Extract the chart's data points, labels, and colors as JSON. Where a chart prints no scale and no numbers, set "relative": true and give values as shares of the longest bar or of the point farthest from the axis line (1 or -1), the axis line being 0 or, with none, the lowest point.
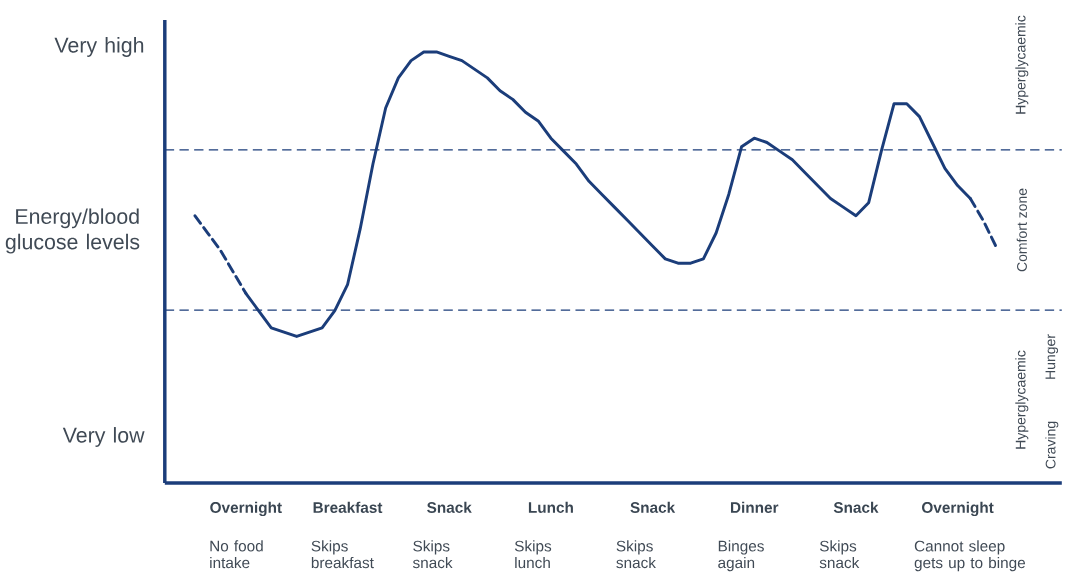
{
  "chart_data": {
    "type": "line",
    "relative": true,
    "ylabel": "Energy/blood glucose levels",
    "categories": [
      null,
      null,
      null,
      null,
      "Overnight",
      null,
      null,
      null,
      null,
      null,
      null,
      null,
      "Breakfast",
      null,
      null,
      null,
      null,
      null,
      null,
      null,
      "Snack",
      null,
      null,
      null,
      null,
      null,
      null,
      null,
      "Lunch",
      null,
      null,
      null,
      null,
      null,
      null,
      null,
      "Snack",
      null,
      null,
      null,
      null,
      null,
      null,
      null,
      "Dinner",
      null,
      null,
      null,
      null,
      null,
      null,
      null,
      "Snack",
      null,
      null,
      null,
      null,
      null,
      null,
      null,
      "Overnight",
      null,
      null,
      null
    ],
    "series": [
      {
        "color": "#1b3d7a",
        "line_style": "dashed",
        "values": [
          0.62,
          0.58,
          0.54,
          0.49,
          0.44,
          null,
          null,
          null,
          null,
          null,
          null,
          null,
          null,
          null,
          null,
          null,
          null,
          null,
          null,
          null,
          null,
          null,
          null,
          null,
          null,
          null,
          null,
          null,
          null,
          null,
          null,
          null,
          null,
          null,
          null,
          null,
          null,
          null,
          null,
          null,
          null,
          null,
          null,
          null,
          null,
          null,
          null,
          null,
          null,
          null,
          null,
          null,
          null,
          null,
          null,
          null,
          null,
          null,
          null,
          null,
          null,
          null,
          null,
          null
        ]
      },
      {
        "color": "#1b3d7a",
        "line_style": "solid",
        "values": [
          null,
          null,
          null,
          null,
          0.44,
          0.4,
          0.36,
          0.35,
          0.34,
          0.35,
          0.36,
          0.4,
          0.46,
          0.59,
          0.74,
          0.87,
          0.94,
          0.98,
          1.0,
          1.0,
          0.99,
          0.98,
          0.96,
          0.94,
          0.91,
          0.89,
          0.86,
          0.84,
          0.8,
          0.77,
          0.74,
          0.7,
          0.67,
          0.64,
          0.61,
          0.58,
          0.55,
          0.52,
          0.51,
          0.51,
          0.52,
          0.58,
          0.67,
          0.78,
          0.8,
          0.79,
          0.77,
          0.75,
          0.72,
          0.69,
          0.66,
          0.64,
          0.62,
          0.65,
          0.77,
          0.88,
          0.88,
          0.85,
          0.79,
          0.73,
          0.69,
          0.66,
          null,
          null
        ]
      },
      {
        "color": "#1b3d7a",
        "line_style": "dashed",
        "values": [
          null,
          null,
          null,
          null,
          null,
          null,
          null,
          null,
          null,
          null,
          null,
          null,
          null,
          null,
          null,
          null,
          null,
          null,
          null,
          null,
          null,
          null,
          null,
          null,
          null,
          null,
          null,
          null,
          null,
          null,
          null,
          null,
          null,
          null,
          null,
          null,
          null,
          null,
          null,
          null,
          null,
          null,
          null,
          null,
          null,
          null,
          null,
          null,
          null,
          null,
          null,
          null,
          null,
          null,
          null,
          null,
          null,
          null,
          null,
          null,
          null,
          0.66,
          0.61,
          0.55
        ]
      }
    ],
    "ref_lines": [
      {
        "axis": "y",
        "value": 0.773,
        "color": "#1b3d7a",
        "line_style": "dashed"
      },
      {
        "axis": "y",
        "value": 0.401,
        "color": "#1b3d7a",
        "line_style": "dashed"
      }
    ],
    "annotations": [
      "No food intake",
      "Skips breakfast",
      "Skips snack",
      "Skips lunch",
      "Skips snack",
      "Binges again",
      "Skips snack",
      "Cannot sleep gets up to binge",
      "Very high",
      "Very low",
      "Hyperglycaemic",
      "Comfort zone",
      "Hyperglycaemic",
      "Hunger",
      "Craving"
    ]
  }
}
